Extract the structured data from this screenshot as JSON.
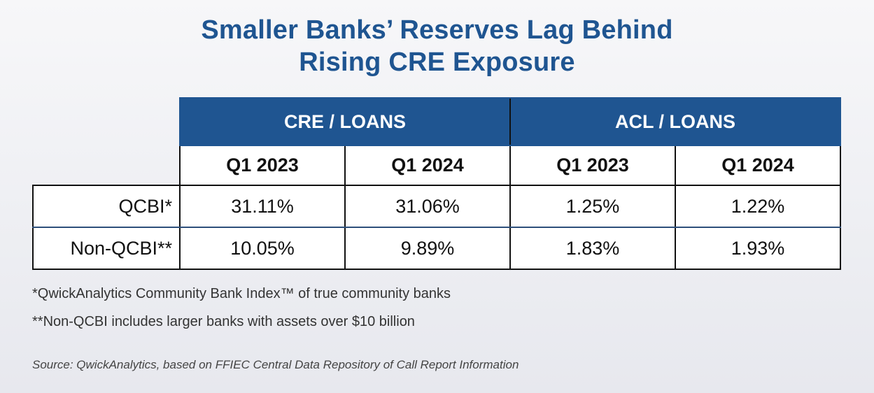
{
  "chart_data": {
    "type": "table",
    "title_lines": [
      "Smaller Banks’ Reserves Lag Behind",
      "Rising CRE Exposure"
    ],
    "column_groups": [
      {
        "label": "CRE / LOANS",
        "columns": [
          "Q1 2023",
          "Q1 2024"
        ]
      },
      {
        "label": "ACL / LOANS",
        "columns": [
          "Q1 2023",
          "Q1 2024"
        ]
      }
    ],
    "rows": [
      {
        "label": "QCBI*",
        "values": [
          "31.11%",
          "31.06%",
          "1.25%",
          "1.22%"
        ]
      },
      {
        "label": "Non-QCBI**",
        "values": [
          "10.05%",
          "9.89%",
          "1.83%",
          "1.93%"
        ]
      }
    ],
    "footnotes": [
      "*QwickAnalytics Community Bank Index™ of true community banks",
      "**Non-QCBI includes larger banks with assets over $10 billion"
    ],
    "source": "Source: QwickAnalytics, based on FFIEC Central Data Repository of Call Report Information"
  },
  "colors": {
    "header_blue": "#1f5591",
    "title_blue": "#1f5591"
  }
}
